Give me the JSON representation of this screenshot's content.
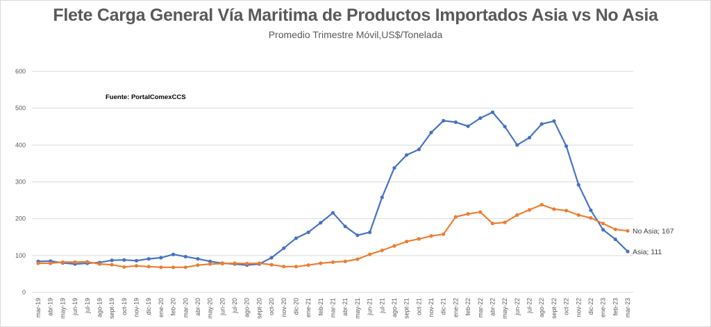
{
  "chart_data": {
    "type": "line",
    "title": "Flete Carga General Vía Maritima de Productos Importados Asia vs No Asia",
    "subtitle": "Promedio Trimestre Móvil,US$/Tonelada",
    "annotation": "Fuente: PortalComexCCS",
    "xlabel": "",
    "ylabel": "",
    "ylim": [
      0,
      600
    ],
    "yticks": [
      0,
      100,
      200,
      300,
      400,
      500,
      600
    ],
    "grid": true,
    "legend": "none (inline end labels)",
    "categories": [
      "mar-19",
      "abr-19",
      "may-19",
      "jun-19",
      "jul-19",
      "ago-19",
      "sept-19",
      "oct-19",
      "nov-19",
      "dic-19",
      "ene-20",
      "feb-20",
      "mar-20",
      "abr-20",
      "may-20",
      "jun-20",
      "jul-20",
      "ago-20",
      "sept-20",
      "oct-20",
      "nov-20",
      "dic-20",
      "ene-21",
      "feb-21",
      "mar-21",
      "abr-21",
      "may-21",
      "jun-21",
      "jul-21",
      "ago-21",
      "sept-21",
      "oct-21",
      "nov-21",
      "dic-21",
      "ene-22",
      "feb-22",
      "mar-22",
      "abr-22",
      "may-22",
      "jun-22",
      "jul-22",
      "ago-22",
      "sept-22",
      "oct-22",
      "nov-22",
      "dic-22",
      "ene-23",
      "feb-23",
      "mar-23"
    ],
    "series": [
      {
        "name": "Asia",
        "color": "#4472c4",
        "end_label": "Asia; 111",
        "values": [
          84,
          85,
          80,
          77,
          79,
          81,
          87,
          88,
          86,
          91,
          94,
          103,
          97,
          91,
          84,
          79,
          77,
          74,
          77,
          94,
          120,
          147,
          163,
          189,
          216,
          179,
          155,
          163,
          258,
          338,
          373,
          388,
          434,
          466,
          462,
          451,
          473,
          489,
          450,
          400,
          420,
          457,
          465,
          397,
          292,
          223,
          170,
          144,
          111
        ]
      },
      {
        "name": "No Asia",
        "color": "#ed7d31",
        "end_label": "No Asia; 167",
        "values": [
          79,
          79,
          82,
          82,
          83,
          77,
          75,
          69,
          72,
          70,
          68,
          68,
          68,
          74,
          77,
          78,
          79,
          78,
          79,
          75,
          70,
          70,
          74,
          79,
          82,
          84,
          90,
          103,
          114,
          126,
          138,
          145,
          153,
          158,
          205,
          213,
          218,
          187,
          190,
          210,
          224,
          238,
          226,
          222,
          210,
          202,
          187,
          171,
          167
        ]
      }
    ]
  }
}
